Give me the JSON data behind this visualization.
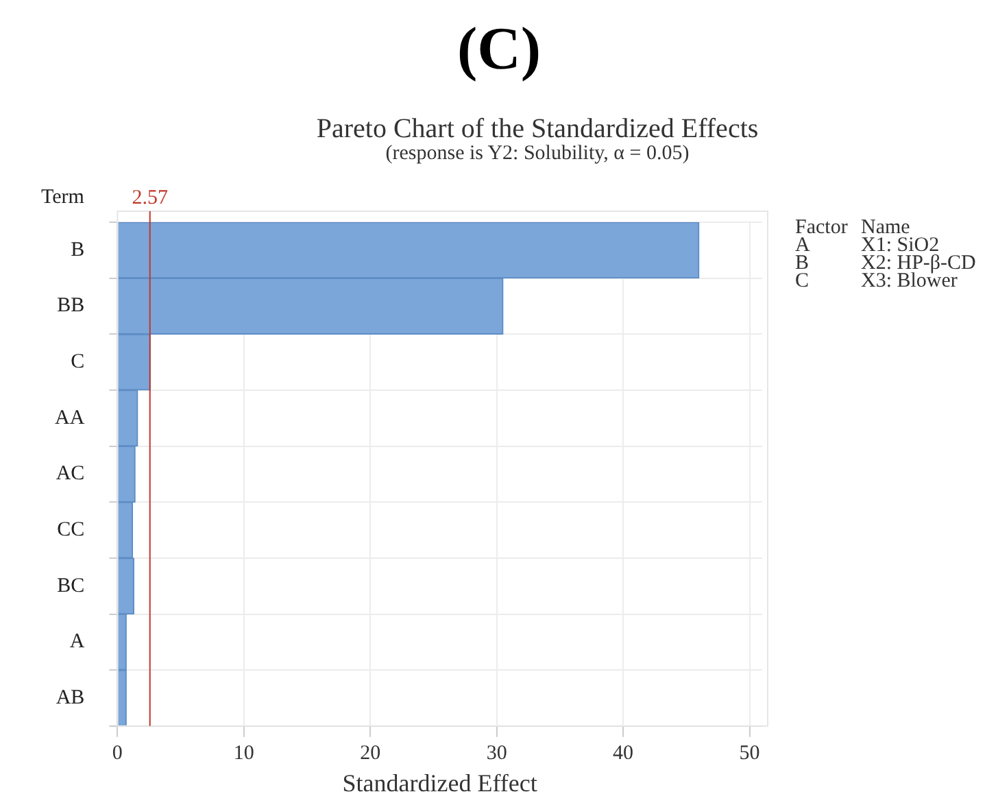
{
  "chart_data": {
    "type": "bar",
    "orientation": "horizontal",
    "title": "Pareto Chart of the Standardized Effects",
    "subtitle": "(response is Y2: Solubility, α = 0.05)",
    "xlabel": "Standardized Effect",
    "ylabel": "Term",
    "categories": [
      "B",
      "BB",
      "C",
      "AA",
      "AC",
      "CC",
      "BC",
      "A",
      "AB"
    ],
    "values": [
      46,
      30.5,
      2.6,
      1.6,
      1.4,
      1.2,
      1.3,
      0.7,
      0.7
    ],
    "color": "#7ba6d9",
    "xlim": [
      0,
      51
    ],
    "xticks": [
      0,
      10,
      20,
      30,
      40,
      50
    ],
    "grid": true,
    "ref_lines": [
      {
        "axis": "x",
        "value": 2.57,
        "label": "2.57",
        "color": "#c0392b"
      }
    ],
    "annotations": [
      "(C)",
      "Factor\tName",
      "A\tX1: SiO2",
      "B\tX2: HP-β-CD",
      "C\tX3: Blower"
    ]
  }
}
